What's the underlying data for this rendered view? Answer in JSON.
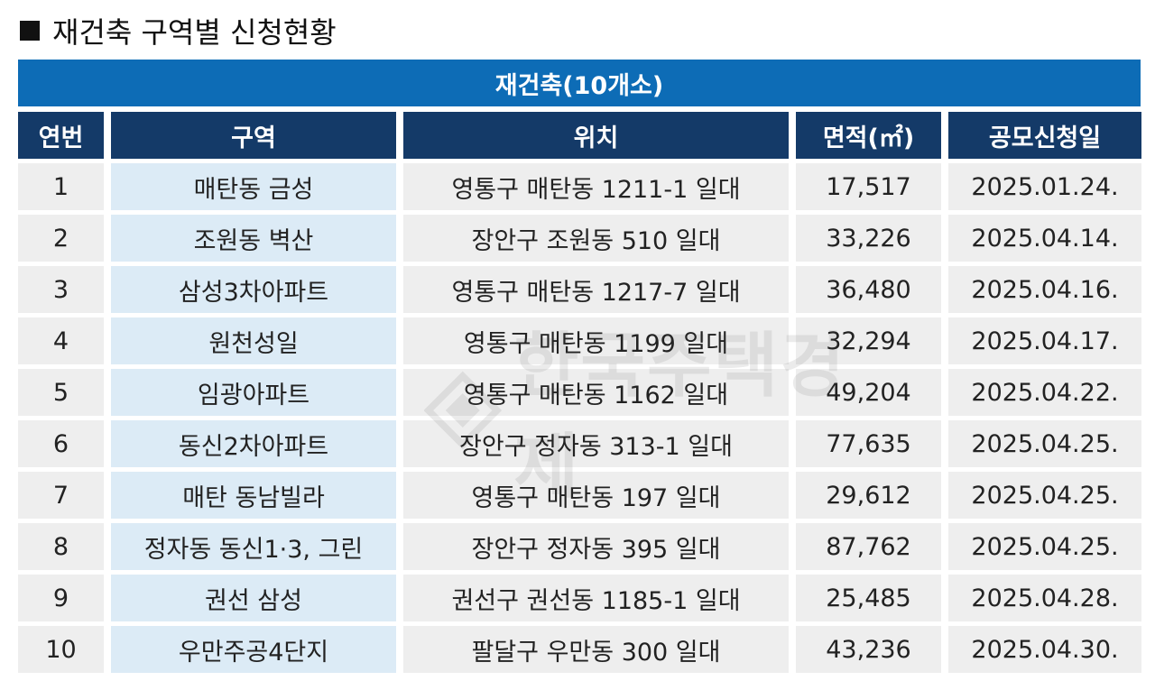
{
  "heading": {
    "bullet": "■",
    "title": "재건축 구역별 신청현황"
  },
  "banner": {
    "title": "재건축(10개소)"
  },
  "table": {
    "columns": [
      "연번",
      "구역",
      "위치",
      "면적(㎡)",
      "공모신청일"
    ],
    "rows": [
      [
        "1",
        "매탄동 금성",
        "영통구 매탄동 1211-1 일대",
        "17,517",
        "2025.01.24."
      ],
      [
        "2",
        "조원동 벽산",
        "장안구 조원동 510 일대",
        "33,226",
        "2025.04.14."
      ],
      [
        "3",
        "삼성3차아파트",
        "영통구 매탄동 1217-7 일대",
        "36,480",
        "2025.04.16."
      ],
      [
        "4",
        "원천성일",
        "영통구 매탄동 1199 일대",
        "32,294",
        "2025.04.17."
      ],
      [
        "5",
        "임광아파트",
        "영통구 매탄동 1162 일대",
        "49,204",
        "2025.04.22."
      ],
      [
        "6",
        "동신2차아파트",
        "장안구 정자동 313-1 일대",
        "77,635",
        "2025.04.25."
      ],
      [
        "7",
        "매탄 동남빌라",
        "영통구 매탄동 197 일대",
        "29,612",
        "2025.04.25."
      ],
      [
        "8",
        "정자동 동신1·3, 그린",
        "장안구 정자동 395 일대",
        "87,762",
        "2025.04.25."
      ],
      [
        "9",
        "권선 삼성",
        "권선구 권선동 1185-1 일대",
        "25,485",
        "2025.04.28."
      ],
      [
        "10",
        "우만주공4단지",
        "팔달구 우만동 300 일대",
        "43,236",
        "2025.04.30."
      ]
    ]
  },
  "colors": {
    "banner": "#0d6cb6",
    "header": "#143a68",
    "cell_gray": "#eeeeee",
    "cell_blue": "#dcebf6"
  },
  "watermark": {
    "text": "한국주택경제"
  }
}
